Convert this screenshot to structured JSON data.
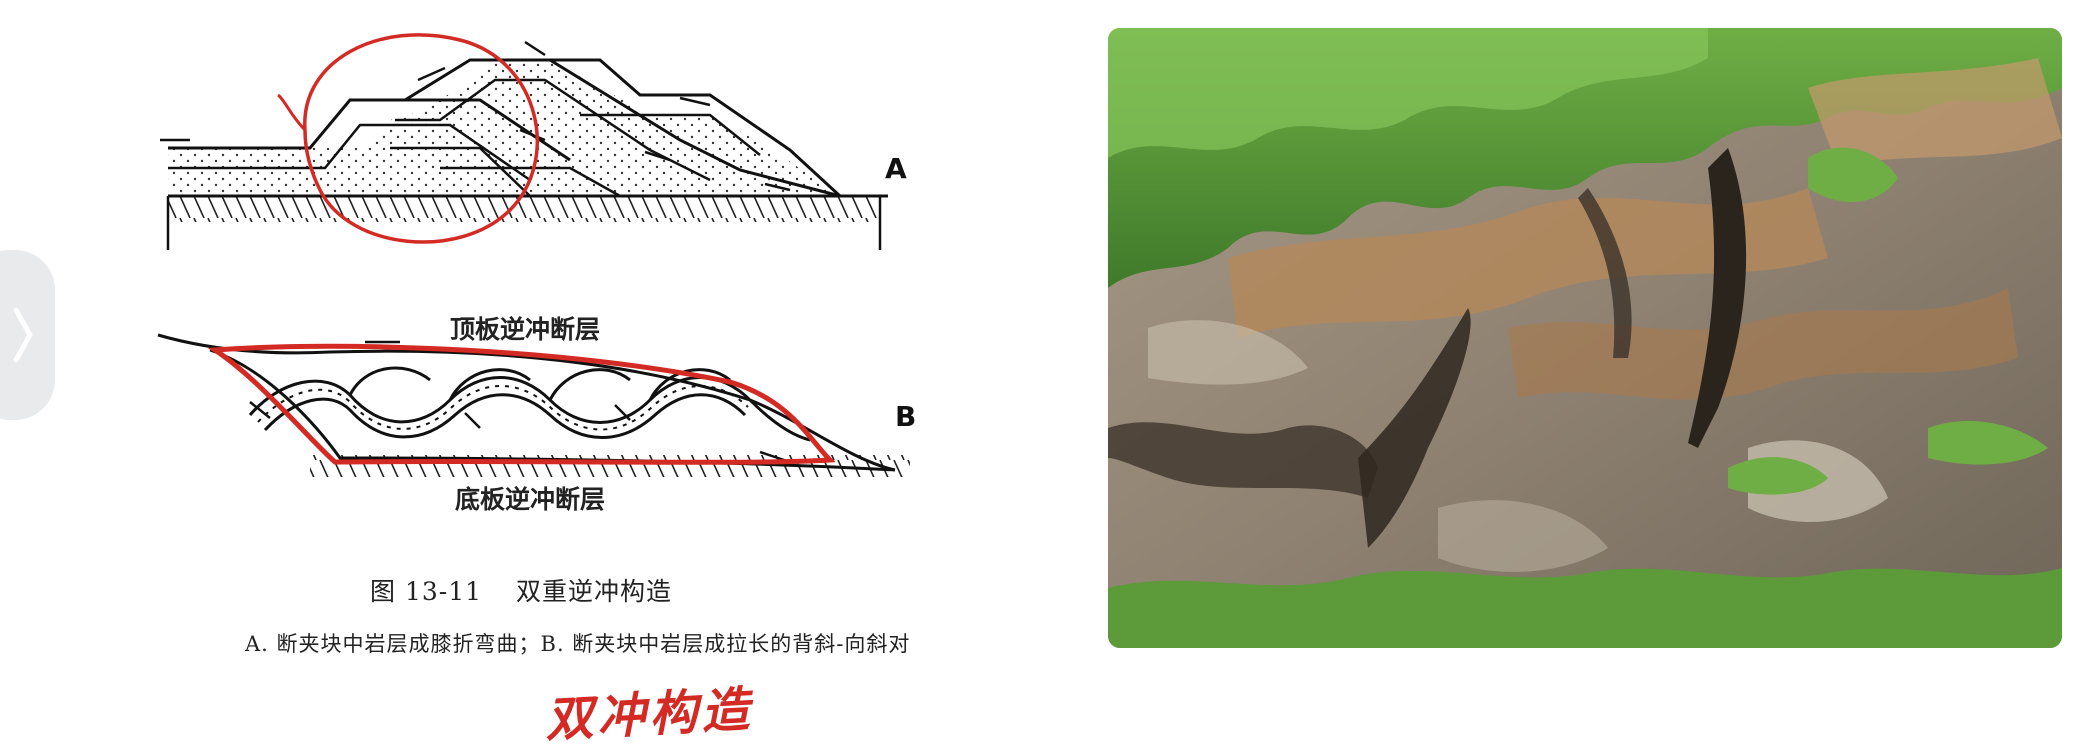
{
  "side_tab": {
    "icon": "chevron-right-icon"
  },
  "figure": {
    "label_a": "A",
    "label_b": "B",
    "roof_fault": "顶板逆冲断层",
    "floor_fault": "底板逆冲断层",
    "caption_number": "图 13-11",
    "caption_title": "双重逆冲构造",
    "subcaption": "A. 断夹块中岩层成膝折弯曲；B. 断夹块中岩层成拉长的背斜-向斜对",
    "annotation_color": "#d42a24",
    "handwritten_note": "双冲构造"
  },
  "photo": {
    "subject": "outcrop-photo",
    "colors": {
      "vegetation": "#5c9a3a",
      "rock": "#9a8c7a",
      "rock_dark": "#4a4036",
      "rock_orange": "#b58858"
    }
  }
}
